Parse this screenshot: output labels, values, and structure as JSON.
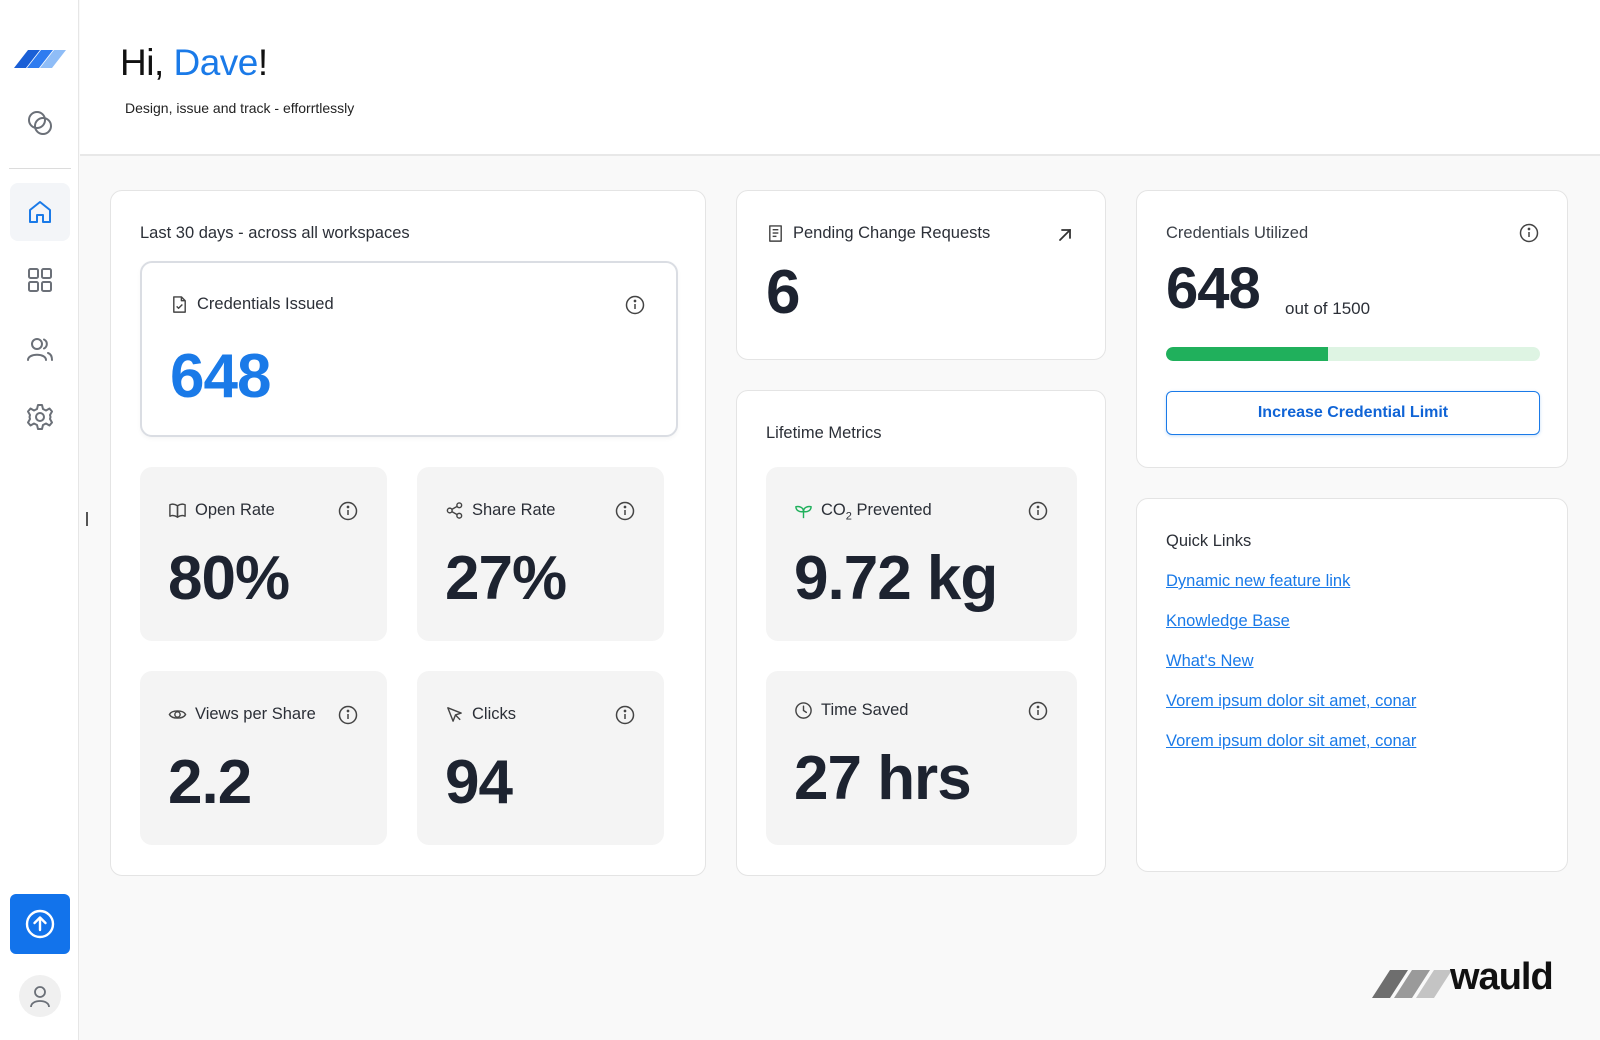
{
  "header": {
    "greeting_prefix": "Hi, ",
    "user_name": "Dave",
    "greeting_suffix": "!",
    "tagline": "Design, issue and track - efforrtlessly"
  },
  "activity": {
    "title": "Last 30 days - across all workspaces",
    "credentials_issued": {
      "label": "Credentials Issued",
      "value": "648"
    },
    "open_rate": {
      "label": "Open Rate",
      "value": "80%"
    },
    "share_rate": {
      "label": "Share Rate",
      "value": "27%"
    },
    "views_per_share": {
      "label": "Views per Share",
      "value": "2.2"
    },
    "clicks": {
      "label": "Clicks",
      "value": "94"
    }
  },
  "pending": {
    "label": "Pending Change Requests",
    "value": "6"
  },
  "lifetime": {
    "title": "Lifetime Metrics",
    "co2": {
      "label_prefix": "CO",
      "label_sub": "2",
      "label_suffix": " Prevented",
      "value": "9.72 kg"
    },
    "time_saved": {
      "label": "Time Saved",
      "value": "27 hrs"
    }
  },
  "utilization": {
    "label": "Credentials Utilized",
    "used": "648",
    "total_text": "out of 1500",
    "fraction": 0.432,
    "button_label": "Increase Credential Limit"
  },
  "quick_links": {
    "title": "Quick Links",
    "items": [
      "Dynamic new feature link",
      "Knowledge Base",
      "What's New",
      "Vorem ipsum dolor sit amet, conar",
      "Vorem ipsum dolor sit amet, conar"
    ]
  },
  "brand": {
    "name": "wauld"
  },
  "colors": {
    "accent": "#1a7ae8",
    "success": "#20b05c",
    "progress_track": "#def4e3"
  }
}
